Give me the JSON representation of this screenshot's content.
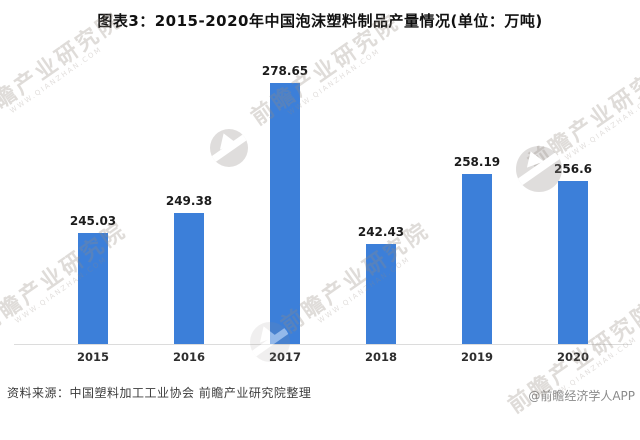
{
  "title": "图表3：2015-2020年中国泡沫塑料制品产量情况(单位：万吨)",
  "chart_data": {
    "type": "bar",
    "title": "图表3：2015-2020年中国泡沫塑料制品产量情况",
    "unit": "万吨",
    "categories": [
      "2015",
      "2016",
      "2017",
      "2018",
      "2019",
      "2020"
    ],
    "values": [
      245.03,
      249.38,
      278.65,
      242.43,
      258.19,
      256.6
    ],
    "xlabel": "",
    "ylabel": "",
    "ylim": [
      220,
      285
    ],
    "grid": false,
    "legend": false,
    "bar_color": "#3c7fd9",
    "value_labels_shown": true
  },
  "footer": {
    "source": "资料来源：中国塑料加工工业协会 前瞻产业研究院整理",
    "credit": "@前瞻经济学人APP"
  },
  "watermark": {
    "text": "前瞻产业研究院",
    "subtext": "WWW.QIANZHAN.COM"
  }
}
